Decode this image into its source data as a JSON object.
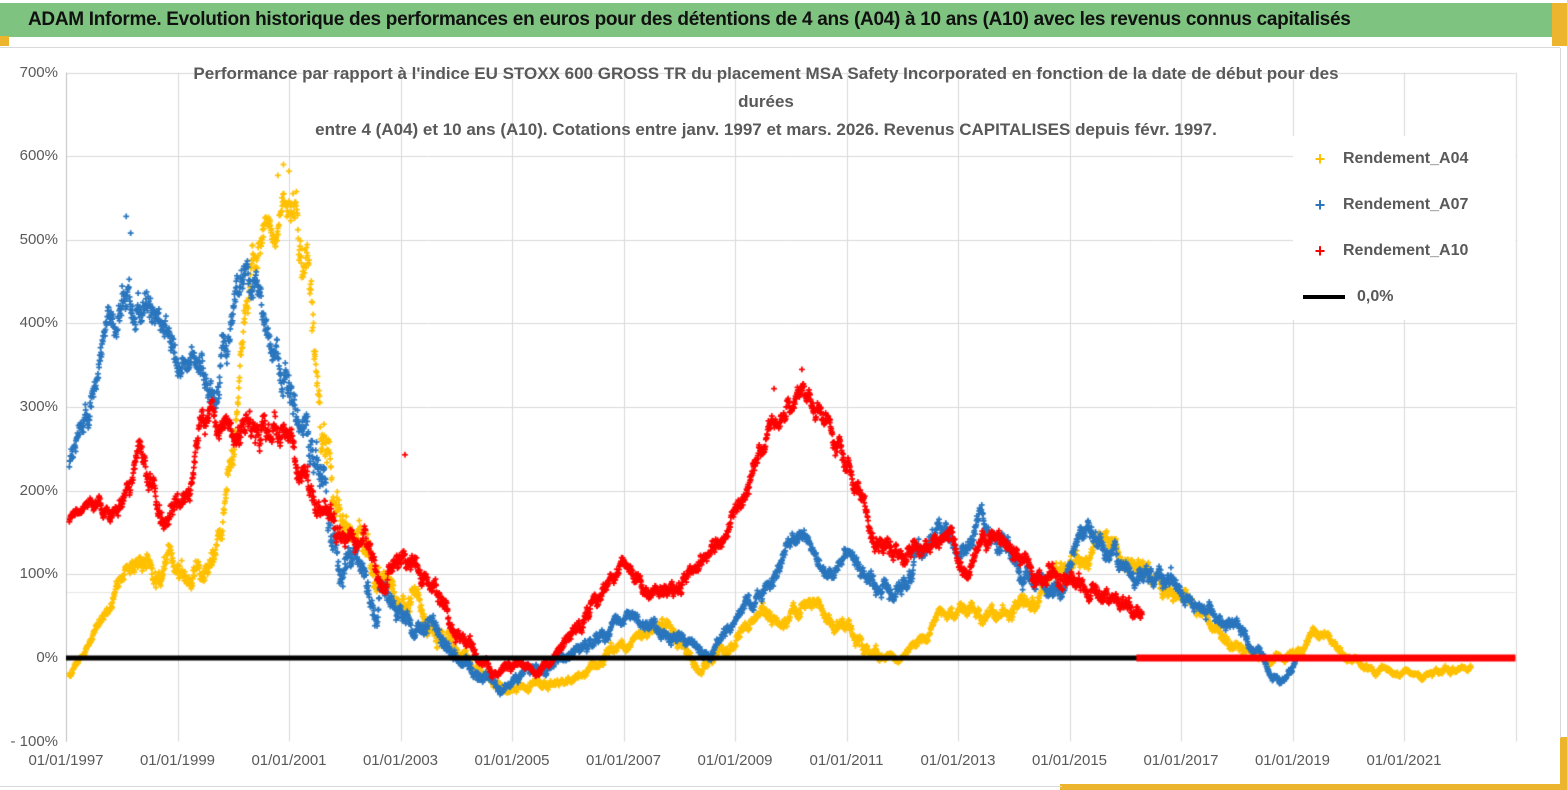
{
  "page": {
    "header_text": "ADAM Informe. Evolution historique des performances en euros pour des détentions de 4 ans (A04) à 10 ans (A10) avec les revenus connus capitalisés",
    "header_bg": "#7EC480",
    "accent_border_color": "#EDB52E"
  },
  "chart_data": {
    "type": "scatter",
    "title_lines": [
      "Performance par rapport à l'indice EU STOXX 600 GROSS TR  du placement MSA Safety Incorporated en fonction de la date de début pour des",
      "durées",
      "entre 4 (A04) et 10 ans (A10). Cotations entre janv. 1997 et mars. 2026. Revenus CAPITALISES depuis févr. 1997."
    ],
    "y_axis": {
      "min": -100,
      "max": 700,
      "step": 100,
      "tick_labels": [
        "700%",
        "600%",
        "500%",
        "400%",
        "300%",
        "200%",
        "100%",
        "0%",
        "- 100%"
      ],
      "extra_faint_gridline_value": 79,
      "grid": true
    },
    "x_axis": {
      "tick_years": [
        1997,
        1999,
        2001,
        2003,
        2005,
        2007,
        2009,
        2011,
        2013,
        2015,
        2017,
        2019,
        2021
      ],
      "tick_labels": [
        "01/01/1997",
        "01/01/1999",
        "01/01/2001",
        "01/01/2003",
        "01/01/2005",
        "01/01/2007",
        "01/01/2009",
        "01/01/2011",
        "01/01/2013",
        "01/01/2015",
        "01/01/2017",
        "01/01/2019",
        "01/01/2021"
      ],
      "axis_start_year": 1997.0,
      "axis_end_year": 2023.0
    },
    "legend": [
      {
        "label": "Rendement_A04",
        "color": "#FFC000",
        "marker": "plus"
      },
      {
        "label": "Rendement_A07",
        "color": "#2A76BE",
        "marker": "plus"
      },
      {
        "label": "Rendement_A10",
        "color": "#FF0000",
        "marker": "plus"
      },
      {
        "label": "0,0%",
        "color": "#000000",
        "marker": "line"
      }
    ],
    "zero_line": {
      "label": "0,0%",
      "color": "#000000",
      "from_year": 1997.0,
      "to_year": 2016.3,
      "value": 0
    },
    "red_zero_segment": {
      "color": "#FF0000",
      "from_year": 2016.2,
      "to_year": 2023.0,
      "value": 0,
      "note": "Rendement_A10 plotted at 0% for start dates after mars 2016"
    },
    "series": [
      {
        "name": "Rendement_A04",
        "color": "#FFC000",
        "marker": "plus",
        "anchors": [
          [
            1997.06,
            -20,
            8
          ],
          [
            1997.3,
            0,
            10
          ],
          [
            1997.6,
            42,
            15
          ],
          [
            1997.95,
            90,
            22
          ],
          [
            1998.3,
            112,
            25
          ],
          [
            1998.7,
            100,
            30
          ],
          [
            1999.1,
            118,
            30
          ],
          [
            1999.5,
            128,
            30
          ],
          [
            1999.8,
            170,
            35
          ],
          [
            2000.05,
            265,
            45
          ],
          [
            2000.25,
            400,
            55
          ],
          [
            2000.45,
            490,
            40
          ],
          [
            2000.7,
            530,
            35
          ],
          [
            2000.95,
            555,
            30
          ],
          [
            2001.15,
            490,
            80
          ],
          [
            2001.4,
            330,
            90
          ],
          [
            2001.7,
            230,
            60
          ],
          [
            2002.1,
            160,
            40
          ],
          [
            2002.5,
            110,
            40
          ],
          [
            2002.9,
            65,
            35
          ],
          [
            2003.4,
            55,
            30
          ],
          [
            2003.9,
            15,
            25
          ],
          [
            2004.4,
            -22,
            15
          ],
          [
            2004.9,
            -38,
            12
          ],
          [
            2005.4,
            -38,
            12
          ],
          [
            2005.9,
            -28,
            12
          ],
          [
            2006.4,
            -12,
            14
          ],
          [
            2006.9,
            8,
            15
          ],
          [
            2007.3,
            22,
            15
          ],
          [
            2007.65,
            48,
            20
          ],
          [
            2008.0,
            18,
            18
          ],
          [
            2008.4,
            -8,
            12
          ],
          [
            2008.9,
            22,
            18
          ],
          [
            2009.4,
            45,
            18
          ],
          [
            2009.9,
            55,
            18
          ],
          [
            2010.5,
            62,
            16
          ],
          [
            2011.0,
            28,
            20
          ],
          [
            2011.5,
            8,
            15
          ],
          [
            2011.95,
            -10,
            10
          ],
          [
            2012.4,
            25,
            15
          ],
          [
            2012.8,
            48,
            18
          ],
          [
            2013.3,
            40,
            18
          ],
          [
            2013.9,
            52,
            20
          ],
          [
            2014.5,
            88,
            25
          ],
          [
            2015.0,
            112,
            25
          ],
          [
            2015.55,
            135,
            20
          ],
          [
            2016.05,
            118,
            25
          ],
          [
            2016.55,
            88,
            20
          ],
          [
            2017.0,
            62,
            16
          ],
          [
            2017.5,
            45,
            18
          ],
          [
            2018.1,
            15,
            14
          ],
          [
            2018.6,
            3,
            12
          ],
          [
            2019.0,
            10,
            12
          ],
          [
            2019.4,
            32,
            14
          ],
          [
            2019.9,
            3,
            12
          ],
          [
            2020.35,
            -12,
            10
          ],
          [
            2020.85,
            -20,
            8
          ],
          [
            2021.35,
            -17,
            8
          ],
          [
            2021.75,
            -8,
            9
          ],
          [
            2022.2,
            -8,
            6
          ]
        ],
        "outliers": [
          [
            2000.9,
            590
          ],
          [
            2001.0,
            582
          ],
          [
            2000.8,
            577
          ]
        ]
      },
      {
        "name": "Rendement_A07",
        "color": "#2A76BE",
        "marker": "plus",
        "anchors": [
          [
            1997.06,
            235,
            30
          ],
          [
            1997.45,
            285,
            40
          ],
          [
            1997.85,
            375,
            50
          ],
          [
            1998.1,
            430,
            55
          ],
          [
            1998.45,
            415,
            50
          ],
          [
            1998.85,
            370,
            40
          ],
          [
            1999.25,
            358,
            40
          ],
          [
            1999.55,
            305,
            50
          ],
          [
            1999.85,
            380,
            50
          ],
          [
            2000.15,
            425,
            45
          ],
          [
            2000.4,
            455,
            40
          ],
          [
            2000.65,
            380,
            45
          ],
          [
            2000.95,
            330,
            50
          ],
          [
            2001.25,
            285,
            45
          ],
          [
            2001.55,
            215,
            60
          ],
          [
            2001.95,
            130,
            40
          ],
          [
            2002.35,
            100,
            35
          ],
          [
            2002.85,
            60,
            30
          ],
          [
            2003.35,
            28,
            25
          ],
          [
            2003.85,
            8,
            20
          ],
          [
            2004.35,
            -12,
            18
          ],
          [
            2004.85,
            -35,
            12
          ],
          [
            2005.35,
            -25,
            14
          ],
          [
            2005.85,
            0,
            15
          ],
          [
            2006.35,
            25,
            15
          ],
          [
            2006.85,
            40,
            15
          ],
          [
            2007.35,
            45,
            15
          ],
          [
            2007.85,
            28,
            18
          ],
          [
            2008.25,
            12,
            14
          ],
          [
            2008.55,
            5,
            12
          ],
          [
            2009.05,
            45,
            20
          ],
          [
            2009.55,
            82,
            20
          ],
          [
            2010.05,
            135,
            20
          ],
          [
            2010.3,
            148,
            16
          ],
          [
            2010.65,
            115,
            18
          ],
          [
            2011.05,
            128,
            20
          ],
          [
            2011.45,
            88,
            25
          ],
          [
            2011.85,
            70,
            20
          ],
          [
            2012.25,
            110,
            25
          ],
          [
            2012.65,
            148,
            25
          ],
          [
            2013.05,
            122,
            25
          ],
          [
            2013.4,
            158,
            25
          ],
          [
            2013.85,
            128,
            28
          ],
          [
            2014.4,
            90,
            25
          ],
          [
            2014.9,
            92,
            25
          ],
          [
            2015.35,
            158,
            25
          ],
          [
            2015.85,
            112,
            25
          ],
          [
            2016.25,
            100,
            25
          ],
          [
            2016.75,
            88,
            25
          ],
          [
            2017.15,
            68,
            18
          ],
          [
            2017.65,
            52,
            20
          ],
          [
            2018.1,
            25,
            15
          ],
          [
            2018.45,
            0,
            13
          ],
          [
            2018.75,
            -18,
            10
          ],
          [
            2019.05,
            -5,
            10
          ]
        ],
        "outliers": [
          [
            1998.08,
            528
          ],
          [
            1998.16,
            508
          ]
        ]
      },
      {
        "name": "Rendement_A10",
        "color": "#FF0000",
        "marker": "plus",
        "anchors": [
          [
            1997.06,
            163,
            10
          ],
          [
            1997.45,
            175,
            15
          ],
          [
            1997.95,
            182,
            20
          ],
          [
            1998.35,
            228,
            28
          ],
          [
            1998.75,
            182,
            30
          ],
          [
            1999.15,
            205,
            30
          ],
          [
            1999.55,
            288,
            35
          ],
          [
            1999.95,
            268,
            35
          ],
          [
            2000.25,
            288,
            35
          ],
          [
            2000.55,
            270,
            40
          ],
          [
            2000.85,
            268,
            40
          ],
          [
            2001.15,
            228,
            32
          ],
          [
            2001.55,
            188,
            30
          ],
          [
            2001.95,
            142,
            30
          ],
          [
            2002.35,
            128,
            26
          ],
          [
            2002.75,
            112,
            26
          ],
          [
            2003.25,
            105,
            26
          ],
          [
            2003.75,
            58,
            26
          ],
          [
            2004.25,
            3,
            18
          ],
          [
            2004.75,
            -14,
            12
          ],
          [
            2005.25,
            -15,
            12
          ],
          [
            2005.75,
            2,
            15
          ],
          [
            2006.25,
            42,
            20
          ],
          [
            2006.8,
            105,
            20
          ],
          [
            2007.25,
            108,
            20
          ],
          [
            2007.7,
            80,
            20
          ],
          [
            2008.1,
            95,
            20
          ],
          [
            2008.6,
            138,
            20
          ],
          [
            2009.05,
            188,
            22
          ],
          [
            2009.45,
            240,
            26
          ],
          [
            2009.95,
            278,
            26
          ],
          [
            2010.2,
            298,
            26
          ],
          [
            2010.55,
            292,
            26
          ],
          [
            2010.85,
            248,
            30
          ],
          [
            2011.25,
            192,
            26
          ],
          [
            2011.65,
            132,
            26
          ],
          [
            2012.05,
            115,
            26
          ],
          [
            2012.45,
            138,
            26
          ],
          [
            2012.8,
            148,
            22
          ],
          [
            2013.15,
            102,
            22
          ],
          [
            2013.6,
            152,
            22
          ],
          [
            2014.1,
            122,
            25
          ],
          [
            2014.6,
            110,
            25
          ],
          [
            2015.1,
            95,
            25
          ],
          [
            2015.6,
            80,
            22
          ],
          [
            2016.0,
            70,
            20
          ],
          [
            2016.3,
            58,
            20
          ]
        ],
        "outliers": [
          [
            2010.2,
            345
          ],
          [
            2009.7,
            322
          ],
          [
            2003.08,
            243
          ]
        ]
      }
    ]
  }
}
